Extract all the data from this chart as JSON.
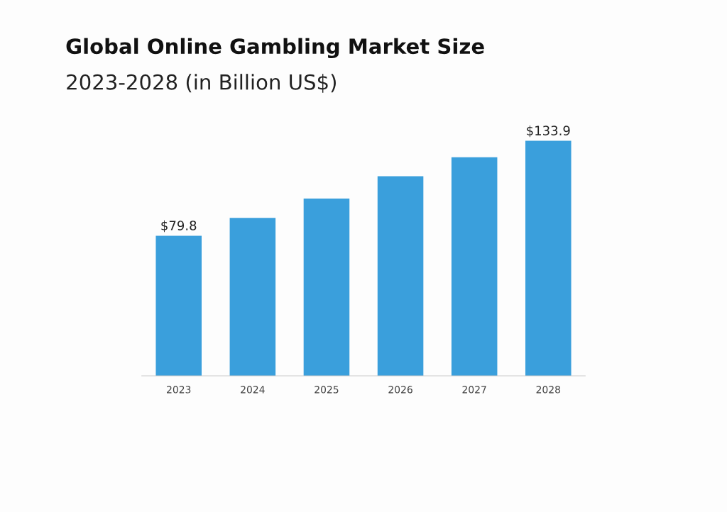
{
  "chart_data": {
    "type": "bar",
    "title": "Global Online Gambling Market Size",
    "subtitle": "2023-2028 (in Billion US$)",
    "categories": [
      "2023",
      "2024",
      "2025",
      "2026",
      "2027",
      "2028"
    ],
    "values": [
      79.8,
      90.0,
      101.0,
      113.7,
      124.5,
      133.9
    ],
    "value_labels": [
      "$79.8",
      null,
      null,
      null,
      null,
      "$133.9"
    ],
    "color": "#3a9fdc",
    "tick_labels": "x",
    "grid": false,
    "legend": false
  }
}
